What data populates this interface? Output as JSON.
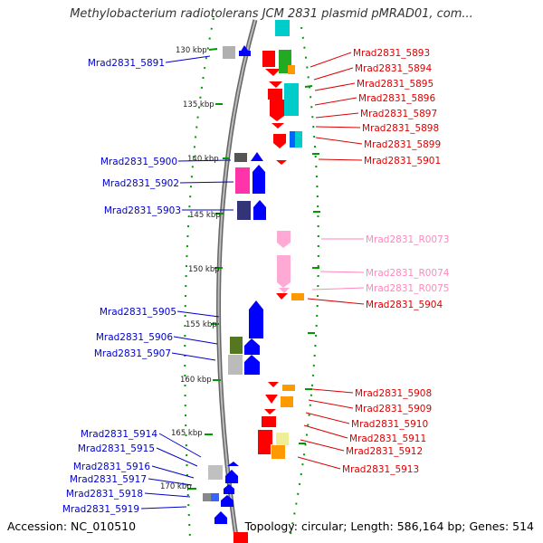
{
  "title": "Methylobacterium radiotolerans JCM 2831 plasmid pMRAD01, com...",
  "footer": {
    "accession": "Accession: NC_010510",
    "summary": "Topology: circular; Length: 586,164 bp; Genes: 514"
  },
  "ticks": [
    "130 kbp",
    "135 kbp",
    "140 kbp",
    "145 kbp",
    "150 kbp",
    "155 kbp",
    "160 kbp",
    "165 kbp",
    "170 kbp"
  ],
  "left_labels": [
    "Mrad2831_5891",
    "Mrad2831_5900",
    "Mrad2831_5902",
    "Mrad2831_5903",
    "Mrad2831_5905",
    "Mrad2831_5906",
    "Mrad2831_5907",
    "Mrad2831_5914",
    "Mrad2831_5915",
    "Mrad2831_5916",
    "Mrad2831_5917",
    "Mrad2831_5918",
    "Mrad2831_5919"
  ],
  "right_labels": [
    "Mrad2831_5893",
    "Mrad2831_5894",
    "Mrad2831_5895",
    "Mrad2831_5896",
    "Mrad2831_5897",
    "Mrad2831_5898",
    "Mrad2831_5899",
    "Mrad2831_5901",
    "Mrad2831_R0073",
    "Mrad2831_R0074",
    "Mrad2831_R0075",
    "Mrad2831_5904",
    "Mrad2831_5908",
    "Mrad2831_5909",
    "Mrad2831_5910",
    "Mrad2831_5911",
    "Mrad2831_5912",
    "Mrad2831_5913"
  ],
  "colors": {
    "forward_gene": "#0000ff",
    "reverse_gene": "#ff0000",
    "rna_gene": "#ff99cc",
    "backbone": "#888888",
    "tick_green": "#009900",
    "label_blue": "#0000cc",
    "label_red": "#dd0000",
    "label_pink": "#ff88bb"
  }
}
